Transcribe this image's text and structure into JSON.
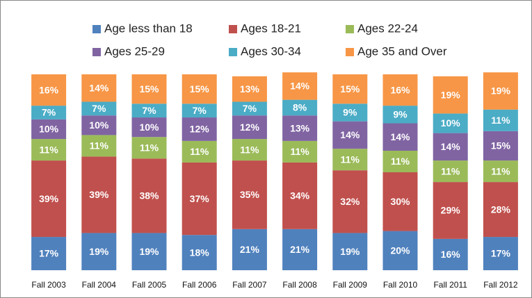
{
  "chart_data": {
    "type": "stacked_bar",
    "categories": [
      "Fall 2003",
      "Fall 2004",
      "Fall 2005",
      "Fall 2006",
      "Fall 2007",
      "Fall 2008",
      "Fall 2009",
      "Fall 2010",
      "Fall 2011",
      "Fall 2012"
    ],
    "ylim": [
      0,
      100
    ],
    "series": [
      {
        "name": "Age less than 18",
        "color": "#4f81bd",
        "values": [
          17,
          19,
          19,
          18,
          21,
          21,
          19,
          20,
          16,
          17
        ],
        "value_labels": [
          "17%",
          "19%",
          "19%",
          "18%",
          "21%",
          "21%",
          "19%",
          "20%",
          "16%",
          "17%"
        ]
      },
      {
        "name": "Ages 18-21",
        "color": "#c0504d",
        "values": [
          39,
          39,
          38,
          37,
          35,
          34,
          32,
          30,
          29,
          28
        ],
        "value_labels": [
          "39%",
          "39%",
          "38%",
          "37%",
          "35%",
          "34%",
          "32%",
          "30%",
          "29%",
          "28%"
        ]
      },
      {
        "name": "Ages 22-24",
        "color": "#9bbb59",
        "values": [
          11,
          11,
          11,
          11,
          11,
          11,
          11,
          11,
          11,
          11
        ],
        "value_labels": [
          "11%",
          "11%",
          "11%",
          "11%",
          "11%",
          "11%",
          "11%",
          "11%",
          "11%",
          "11%"
        ]
      },
      {
        "name": "Ages 25-29",
        "color": "#8064a2",
        "values": [
          10,
          10,
          10,
          12,
          12,
          13,
          14,
          14,
          14,
          15
        ],
        "value_labels": [
          "10%",
          "10%",
          "10%",
          "12%",
          "12%",
          "13%",
          "14%",
          "14%",
          "14%",
          "15%"
        ]
      },
      {
        "name": "Ages 30-34",
        "color": "#4bacc6",
        "values": [
          7,
          7,
          7,
          7,
          7,
          8,
          9,
          9,
          10,
          11
        ],
        "value_labels": [
          "7%",
          "7%",
          "7%",
          "7%",
          "7%",
          "8%",
          "9%",
          "9%",
          "10%",
          "11%"
        ]
      },
      {
        "name": "Age 35 and Over",
        "color": "#f79646",
        "values": [
          16,
          14,
          15,
          15,
          13,
          14,
          15,
          16,
          19,
          19
        ],
        "value_labels": [
          "16%",
          "14%",
          "15%",
          "15%",
          "13%",
          "14%",
          "15%",
          "16%",
          "19%",
          "19%"
        ]
      }
    ]
  }
}
